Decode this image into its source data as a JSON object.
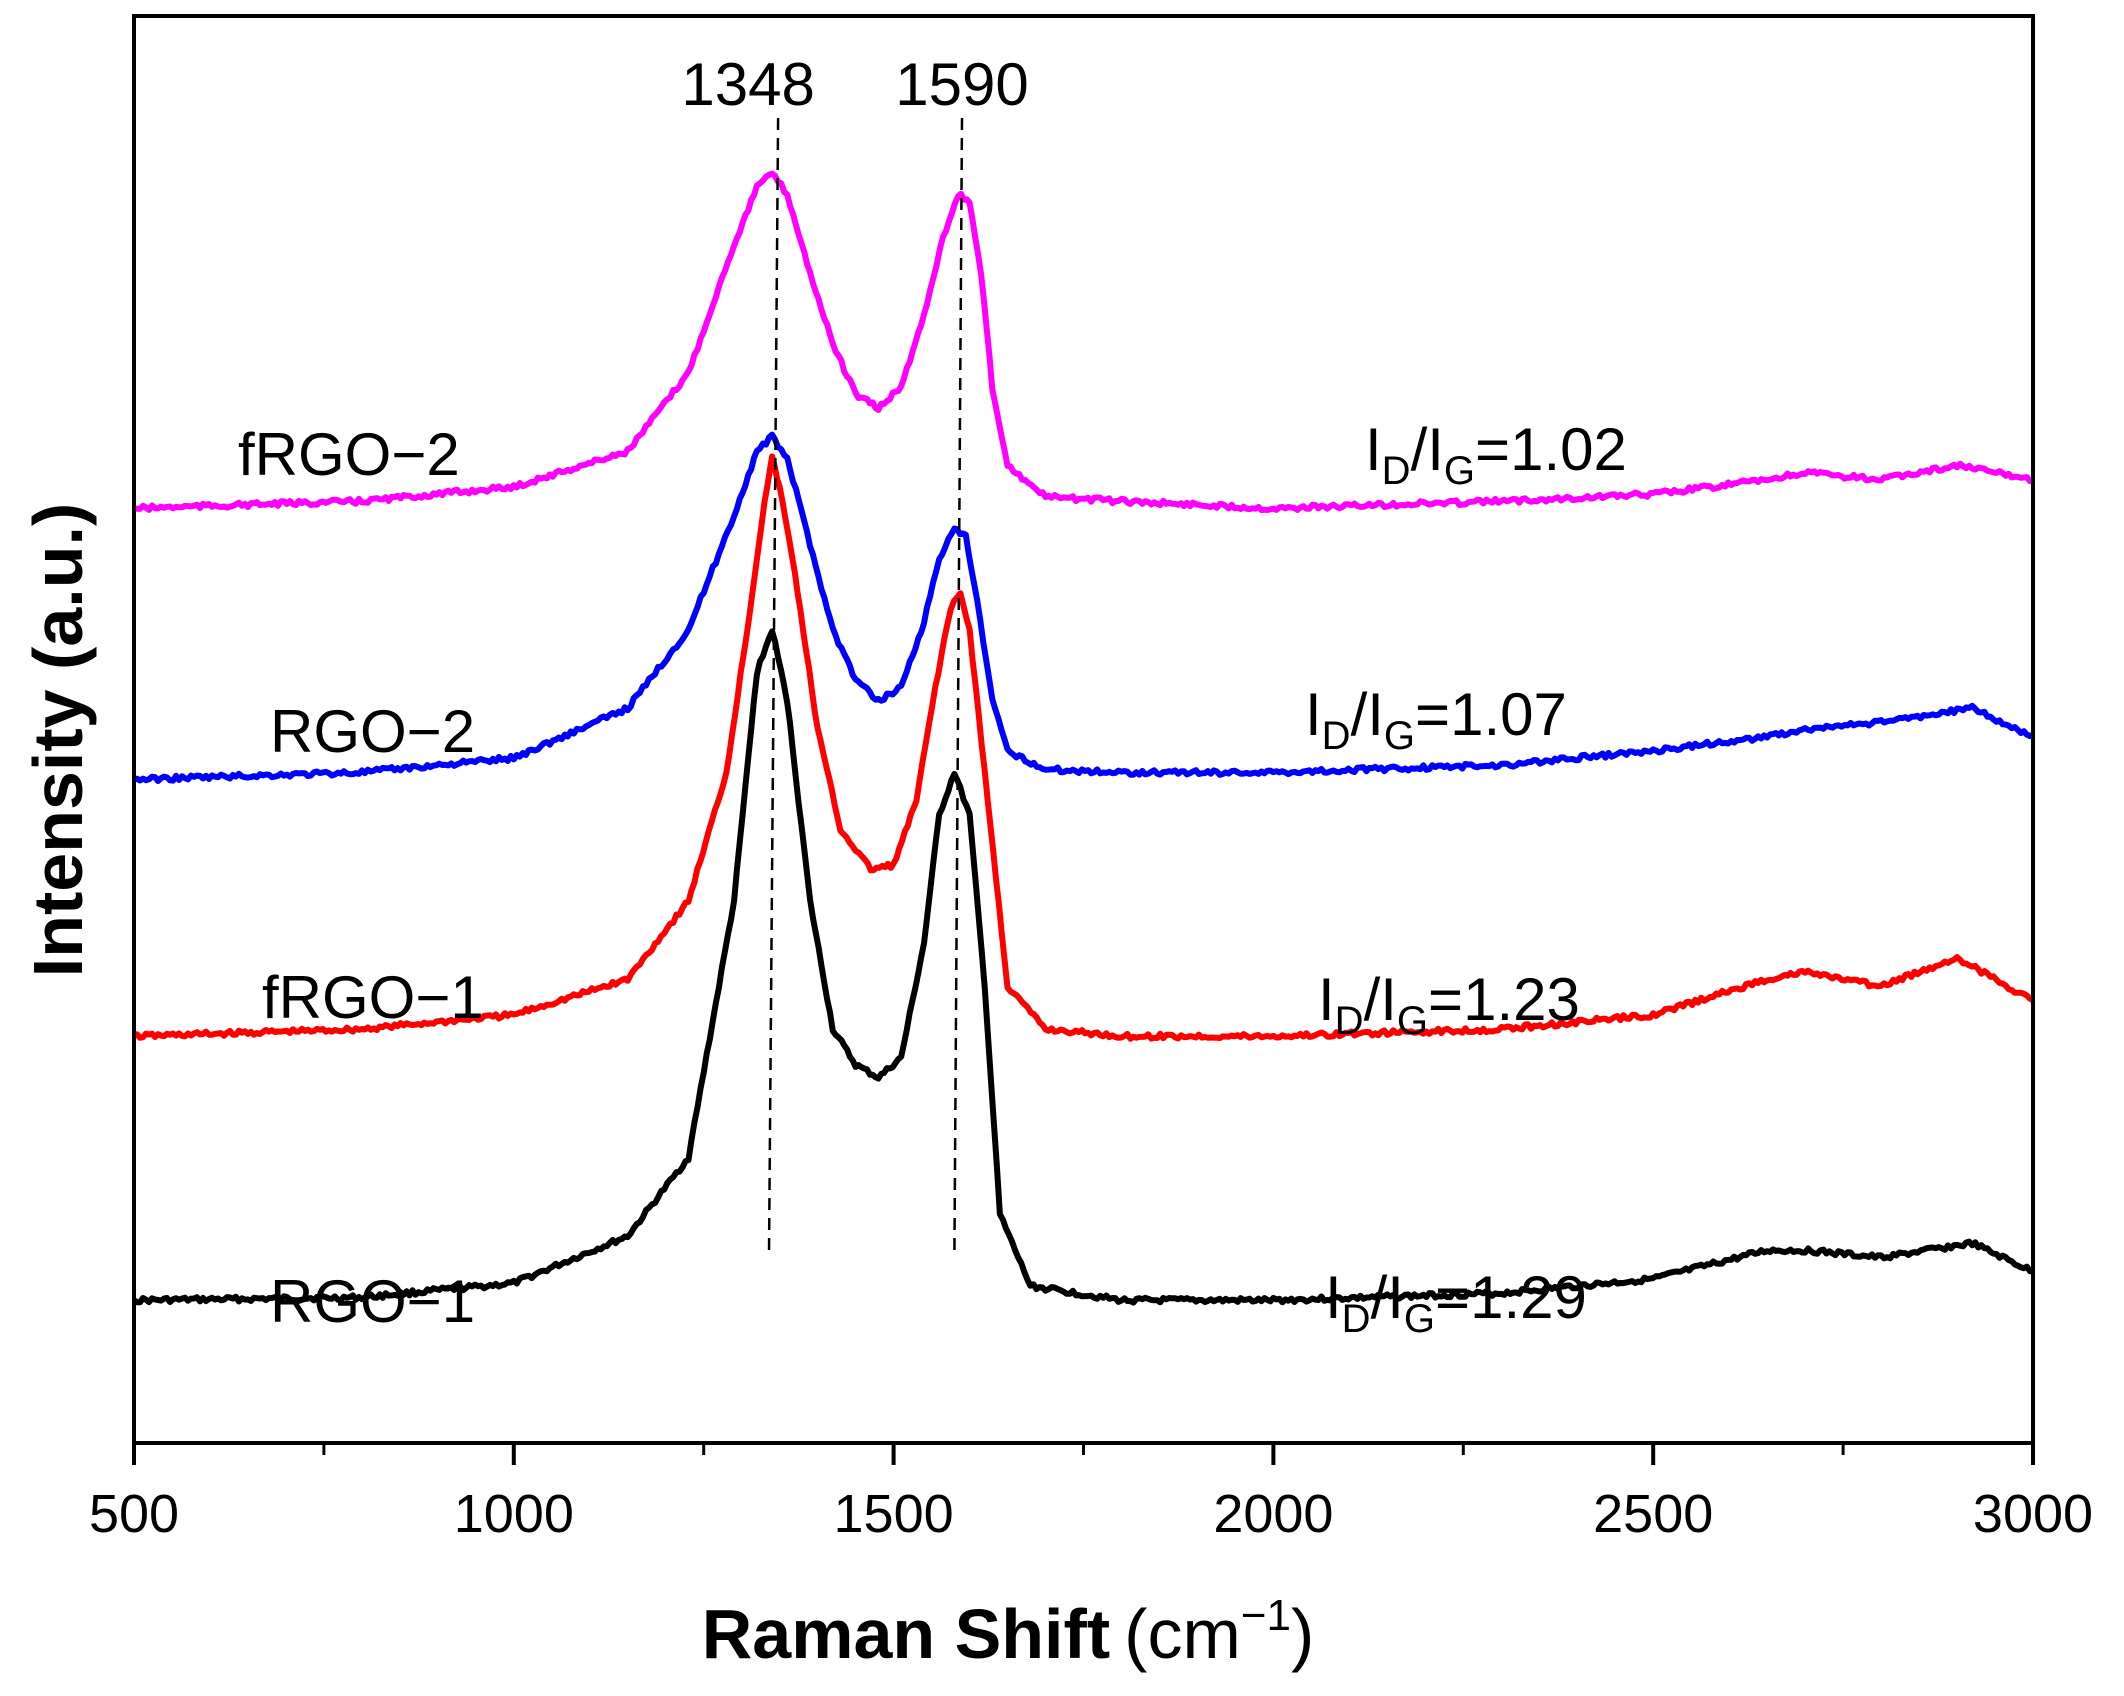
{
  "chart_data": {
    "type": "line",
    "title": "",
    "xlabel": "Raman Shift",
    "xlabel_unit_base": "(cm",
    "xlabel_unit_exp": "−1",
    "xlabel_unit_close": ")",
    "ylabel": "Intensity (a.u.)",
    "xlim": [
      500,
      3000
    ],
    "ylim": [
      0,
      100
    ],
    "x_major_ticks": [
      500,
      1000,
      1500,
      2000,
      2500,
      3000
    ],
    "x_tick_labels": [
      "500",
      "1000",
      "1500",
      "2000",
      "2500",
      "3000"
    ],
    "x_minor_ticks": [
      750,
      1250,
      1750,
      2250,
      2750
    ],
    "peak_markers": [
      {
        "label": "1348",
        "x": 1348
      },
      {
        "label": "1590",
        "x": 1590
      }
    ],
    "series": [
      {
        "name": "RGO−1",
        "color": "#000000",
        "ratio_prefix": "I",
        "ratio_sub1": "D",
        "ratio_mid": "/I",
        "ratio_sub2": "G",
        "ratio_value": "=1.29",
        "x": [
          500,
          800,
          1000,
          1150,
          1230,
          1290,
          1320,
          1340,
          1360,
          1390,
          1420,
          1450,
          1480,
          1510,
          1540,
          1560,
          1580,
          1600,
          1620,
          1640,
          1680,
          1800,
          2000,
          2300,
          2500,
          2650,
          2700,
          2800,
          2920,
          3000
        ],
        "y": [
          10,
          10.2,
          11.2,
          14.5,
          20,
          38,
          54,
          57,
          52,
          38,
          29,
          26.5,
          25.6,
          27,
          35,
          44,
          47,
          44,
          32,
          16,
          11,
          10,
          10,
          10.5,
          11.5,
          13.5,
          13.5,
          13,
          14,
          12
        ]
      },
      {
        "name": "fRGO−1",
        "color": "#ff0000",
        "ratio_prefix": "I",
        "ratio_sub1": "D",
        "ratio_mid": "/I",
        "ratio_sub2": "G",
        "ratio_value": "=1.23",
        "x": [
          500,
          800,
          1000,
          1150,
          1230,
          1280,
          1310,
          1330,
          1340,
          1350,
          1370,
          1400,
          1430,
          1470,
          1500,
          1530,
          1555,
          1575,
          1588,
          1600,
          1620,
          1650,
          1700,
          1800,
          2000,
          2300,
          2500,
          2650,
          2700,
          2800,
          2900,
          3000
        ],
        "y": [
          28.5,
          29,
          30,
          32.5,
          38,
          47,
          58,
          66,
          69,
          67,
          61,
          50,
          43,
          40.2,
          40.5,
          45,
          53,
          58.5,
          59.5,
          57,
          47,
          32,
          29,
          28.5,
          28.5,
          29,
          30,
          32.5,
          33,
          32,
          34,
          31
        ]
      },
      {
        "name": "RGO−2",
        "color": "#0000ff",
        "ratio_prefix": "I",
        "ratio_sub1": "D",
        "ratio_mid": "/I",
        "ratio_sub2": "G",
        "ratio_value": "=1.07",
        "x": [
          500,
          800,
          1000,
          1150,
          1230,
          1290,
          1320,
          1340,
          1360,
          1390,
          1420,
          1450,
          1480,
          1510,
          1540,
          1560,
          1580,
          1595,
          1610,
          1630,
          1650,
          1700,
          1800,
          2000,
          2300,
          2500,
          2650,
          2700,
          2800,
          2920,
          3000
        ],
        "y": [
          46.5,
          47,
          48,
          51.5,
          57,
          65,
          69.5,
          70.5,
          69,
          63,
          57,
          53.5,
          52,
          53,
          57.5,
          62,
          64,
          63.5,
          59,
          52,
          48.5,
          47.2,
          47,
          47,
          47.5,
          48.5,
          49.5,
          50,
          50.5,
          51.5,
          49.5
        ]
      },
      {
        "name": "fRGO−2",
        "color": "#ff00ff",
        "ratio_prefix": "I",
        "ratio_sub1": "D",
        "ratio_mid": "/I",
        "ratio_sub2": "G",
        "ratio_value": "=1.02",
        "x": [
          500,
          800,
          1000,
          1150,
          1230,
          1290,
          1320,
          1340,
          1360,
          1390,
          1420,
          1450,
          1480,
          1510,
          1540,
          1565,
          1585,
          1600,
          1615,
          1630,
          1650,
          1700,
          1800,
          2000,
          2300,
          2500,
          2650,
          2700,
          2800,
          2900,
          3000
        ],
        "y": [
          65.5,
          66,
          67,
          69.5,
          75,
          84,
          88,
          89,
          87.5,
          82,
          77,
          73.5,
          72.5,
          74,
          79,
          84.5,
          87.5,
          87,
          82,
          74,
          68.5,
          66.3,
          66,
          65.5,
          66,
          66.5,
          67.5,
          68,
          67.5,
          68.5,
          67.5
        ]
      }
    ]
  }
}
